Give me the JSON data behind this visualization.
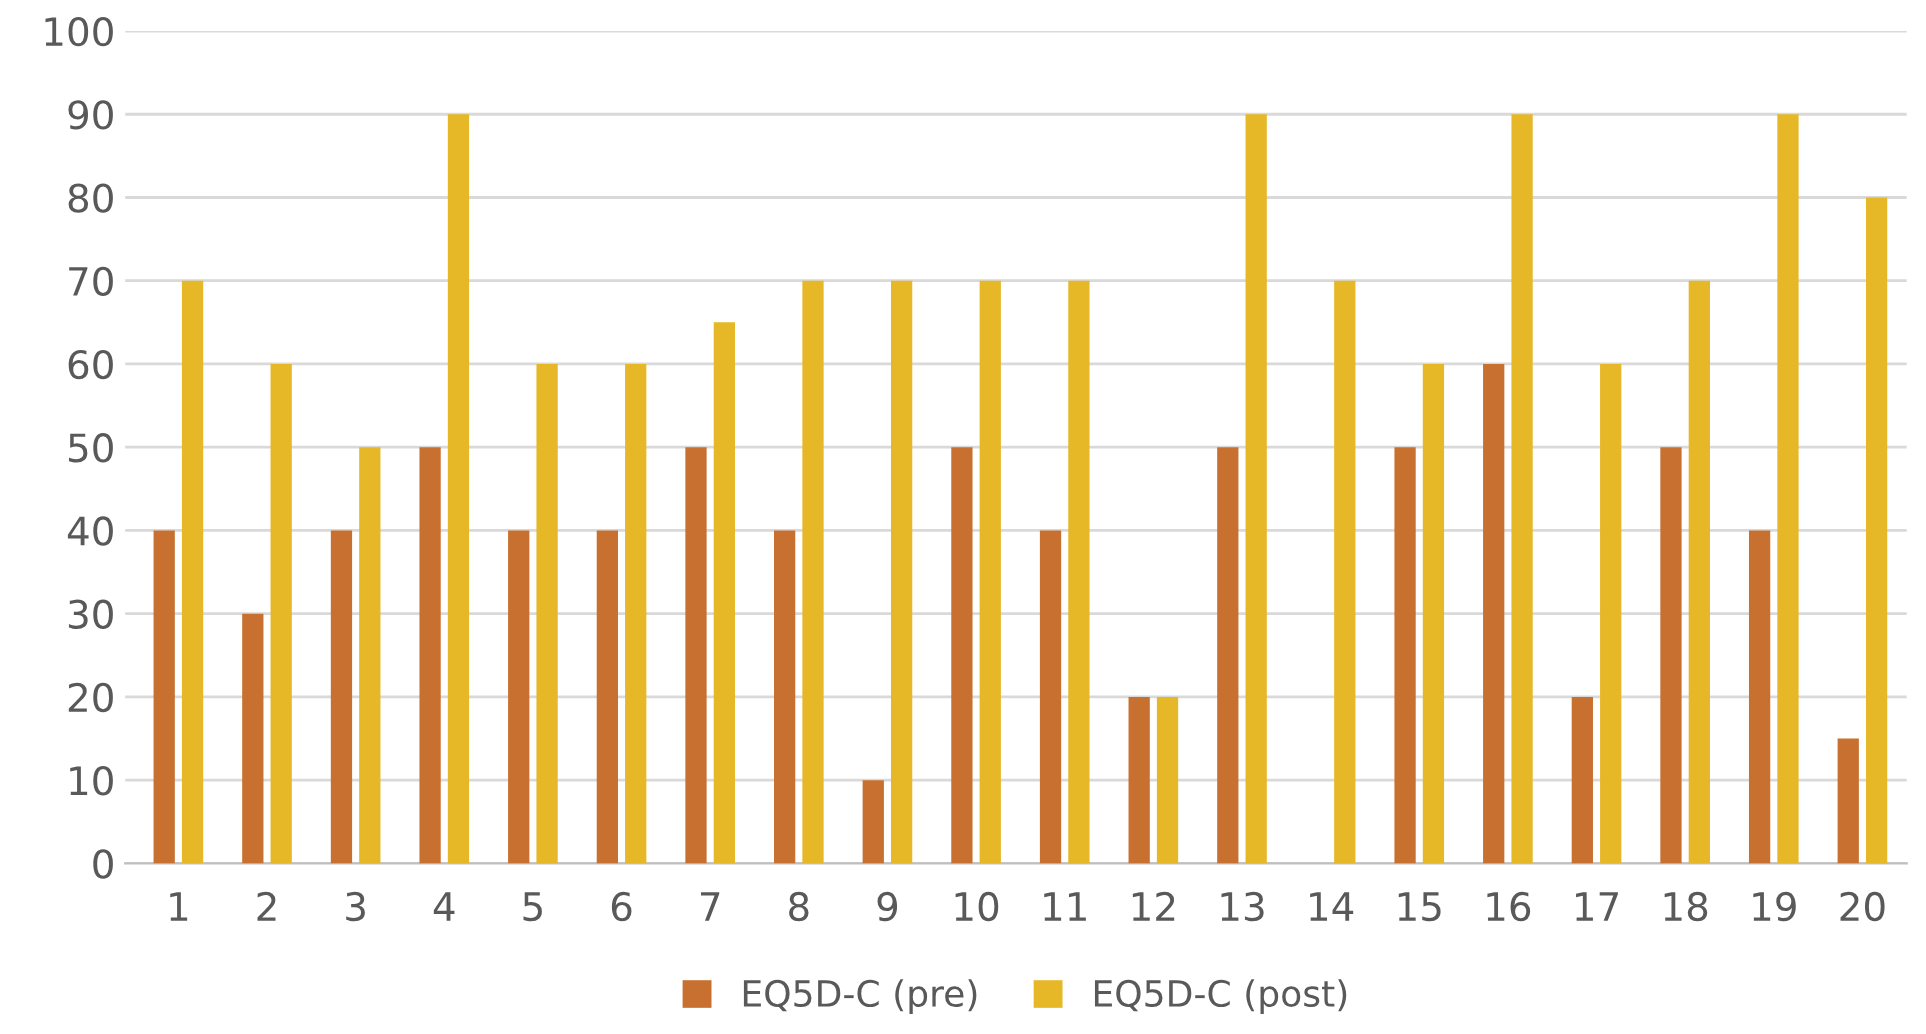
{
  "chart_data": {
    "type": "bar",
    "categories": [
      "1",
      "2",
      "3",
      "4",
      "5",
      "6",
      "7",
      "8",
      "9",
      "10",
      "11",
      "12",
      "13",
      "14",
      "15",
      "16",
      "17",
      "18",
      "19",
      "20"
    ],
    "series": [
      {
        "name": "EQ5D-C (pre)",
        "color": "#c8702f",
        "values": [
          40,
          30,
          40,
          50,
          40,
          40,
          50,
          40,
          10,
          50,
          40,
          20,
          50,
          0,
          50,
          60,
          20,
          50,
          40,
          15
        ]
      },
      {
        "name": "EQ5D-C (post)",
        "color": "#e6b727",
        "values": [
          70,
          60,
          50,
          90,
          60,
          60,
          65,
          70,
          70,
          70,
          70,
          20,
          90,
          70,
          60,
          90,
          60,
          70,
          90,
          80
        ]
      }
    ],
    "ylim": [
      0,
      100
    ],
    "yticks": [
      0,
      10,
      20,
      30,
      40,
      50,
      60,
      70,
      80,
      90,
      100
    ],
    "grid": "y",
    "legend": "bottom"
  }
}
